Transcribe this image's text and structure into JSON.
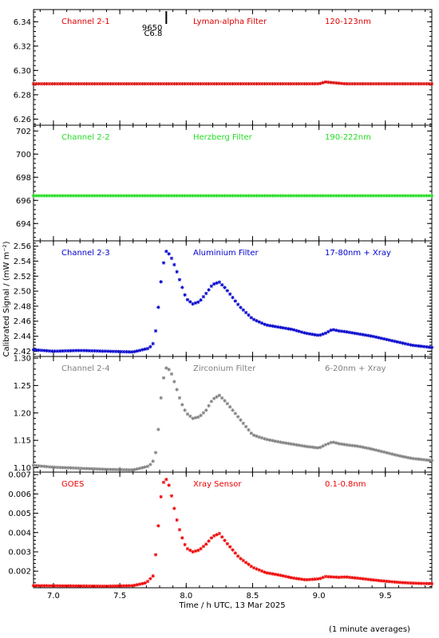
{
  "chart_data": {
    "type": "scatter",
    "xlabel": "Time / h UTC, 13 Mar 2025",
    "ylabel": "Calibrated Signal / (mW m⁻²)",
    "footnote": "(1 minute averages)",
    "xlim": [
      6.85,
      9.85
    ],
    "x_ticks": [
      "7.0",
      "7.5",
      "8.0",
      "8.5",
      "9.0",
      "9.5"
    ],
    "event_marker": {
      "x": 7.85,
      "label_line1": "9650",
      "label_line2": "C6.8"
    },
    "panels": [
      {
        "channel": "Channel 2-1",
        "filter": "Lyman-alpha Filter",
        "band": "120-123nm",
        "color": "#dd0000",
        "ylim": [
          6.255,
          6.35
        ],
        "y_ticks": [
          "6.26",
          "6.28",
          "6.30",
          "6.32",
          "6.34"
        ],
        "x": [
          6.85,
          7.5,
          7.8,
          8.0,
          8.5,
          9.0,
          9.05,
          9.1,
          9.2,
          9.5,
          9.85
        ],
        "y": [
          6.289,
          6.289,
          6.289,
          6.289,
          6.289,
          6.289,
          6.2905,
          6.29,
          6.289,
          6.289,
          6.289
        ]
      },
      {
        "channel": "Channel 2-2",
        "filter": "Herzberg Filter",
        "band": "190-222nm",
        "color": "#22dd22",
        "ylim": [
          692.5,
          702.5
        ],
        "y_ticks": [
          "694",
          "696",
          "698",
          "700",
          "702"
        ],
        "x": [
          6.85,
          7.5,
          8.0,
          8.5,
          9.0,
          9.5,
          9.85
        ],
        "y": [
          696.4,
          696.4,
          696.4,
          696.4,
          696.4,
          696.4,
          696.4
        ]
      },
      {
        "channel": "Channel 2-3",
        "filter": "Aluminium Filter",
        "band": "17-80nm + Xray",
        "color": "#0000cc",
        "ylim": [
          2.413,
          2.567
        ],
        "y_ticks": [
          "2.42",
          "2.44",
          "2.46",
          "2.48",
          "2.50",
          "2.52",
          "2.54",
          "2.56"
        ],
        "x": [
          6.85,
          7.0,
          7.2,
          7.4,
          7.6,
          7.72,
          7.76,
          7.78,
          7.8,
          7.82,
          7.85,
          7.88,
          7.92,
          7.96,
          8.0,
          8.05,
          8.1,
          8.15,
          8.2,
          8.25,
          8.3,
          8.4,
          8.5,
          8.6,
          8.7,
          8.8,
          8.9,
          9.0,
          9.05,
          9.1,
          9.15,
          9.2,
          9.3,
          9.4,
          9.5,
          9.6,
          9.7,
          9.85
        ],
        "y": [
          2.422,
          2.42,
          2.421,
          2.42,
          2.419,
          2.424,
          2.432,
          2.462,
          2.495,
          2.53,
          2.553,
          2.548,
          2.531,
          2.51,
          2.49,
          2.483,
          2.486,
          2.497,
          2.509,
          2.512,
          2.503,
          2.48,
          2.463,
          2.455,
          2.452,
          2.449,
          2.444,
          2.441,
          2.444,
          2.449,
          2.447,
          2.446,
          2.443,
          2.44,
          2.436,
          2.432,
          2.428,
          2.425
        ]
      },
      {
        "channel": "Channel 2-4",
        "filter": "Zirconium Filter",
        "band": "6-20nm + Xray",
        "color": "#808080",
        "ylim": [
          1.092,
          1.303
        ],
        "y_ticks": [
          "1.10",
          "1.15",
          "1.20",
          "1.25",
          "1.30"
        ],
        "x": [
          6.85,
          7.0,
          7.2,
          7.4,
          7.6,
          7.72,
          7.76,
          7.78,
          7.8,
          7.82,
          7.85,
          7.88,
          7.92,
          7.96,
          8.0,
          8.05,
          8.1,
          8.15,
          8.2,
          8.25,
          8.3,
          8.4,
          8.5,
          8.6,
          8.7,
          8.8,
          8.9,
          9.0,
          9.05,
          9.1,
          9.15,
          9.2,
          9.3,
          9.4,
          9.5,
          9.6,
          9.7,
          9.85
        ],
        "y": [
          1.104,
          1.101,
          1.099,
          1.097,
          1.096,
          1.103,
          1.115,
          1.14,
          1.2,
          1.255,
          1.282,
          1.278,
          1.25,
          1.22,
          1.2,
          1.19,
          1.193,
          1.205,
          1.225,
          1.232,
          1.22,
          1.19,
          1.16,
          1.152,
          1.147,
          1.143,
          1.139,
          1.136,
          1.142,
          1.147,
          1.144,
          1.142,
          1.139,
          1.134,
          1.128,
          1.122,
          1.117,
          1.113
        ]
      },
      {
        "channel": "GOES",
        "filter": "Xray Sensor",
        "band": "0.1-0.8nm",
        "color": "#ee0000",
        "ylim": [
          0.00114,
          0.00713
        ],
        "y_ticks": [
          "0.002",
          "0.003",
          "0.004",
          "0.005",
          "0.006",
          "0.007"
        ],
        "x": [
          6.85,
          7.0,
          7.2,
          7.4,
          7.6,
          7.7,
          7.75,
          7.78,
          7.8,
          7.82,
          7.84,
          7.86,
          7.88,
          7.9,
          7.92,
          7.96,
          8.0,
          8.05,
          8.1,
          8.15,
          8.2,
          8.25,
          8.3,
          8.4,
          8.5,
          8.6,
          8.7,
          8.8,
          8.9,
          9.0,
          9.05,
          9.1,
          9.15,
          9.2,
          9.3,
          9.4,
          9.5,
          9.6,
          9.7,
          9.85
        ],
        "y": [
          0.00125,
          0.00124,
          0.00123,
          0.00122,
          0.00125,
          0.0014,
          0.00175,
          0.0034,
          0.0053,
          0.0064,
          0.0068,
          0.0067,
          0.0062,
          0.0056,
          0.0049,
          0.0039,
          0.0032,
          0.003,
          0.0031,
          0.0034,
          0.0038,
          0.00395,
          0.0035,
          0.0027,
          0.0022,
          0.00192,
          0.0018,
          0.00165,
          0.00155,
          0.0016,
          0.00172,
          0.0017,
          0.00168,
          0.0017,
          0.00163,
          0.00155,
          0.00148,
          0.00142,
          0.00138,
          0.00135
        ]
      }
    ]
  }
}
